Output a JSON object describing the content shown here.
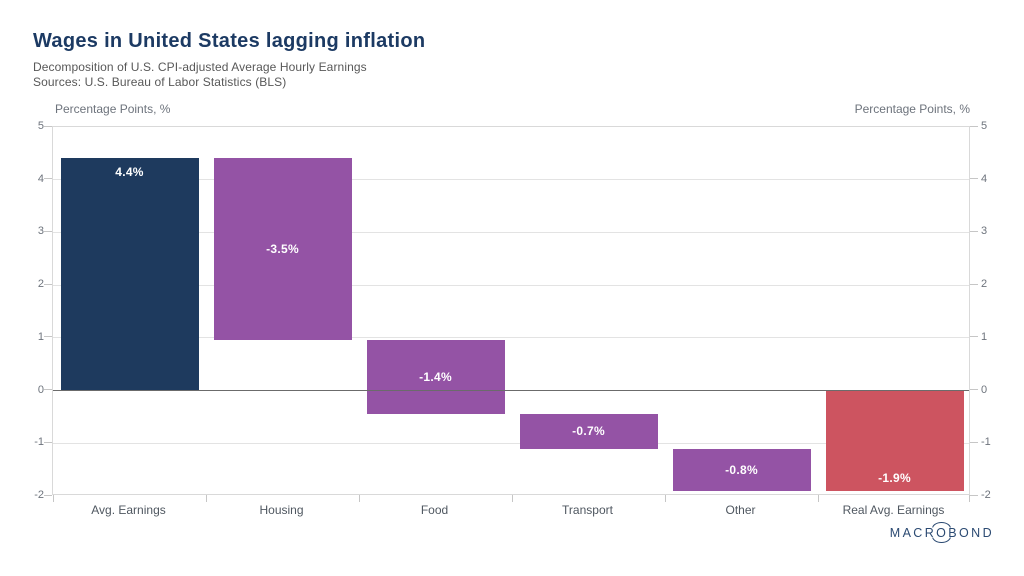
{
  "header": {
    "title": "Wages in United States lagging inflation",
    "subtitle": "Decomposition of U.S. CPI-adjusted Average Hourly Earnings",
    "sources": "Sources: U.S. Bureau of Labor Statistics (BLS)"
  },
  "axes": {
    "left_title": "Percentage Points, %",
    "right_title": "Percentage Points, %",
    "yticks": [
      5,
      4,
      3,
      2,
      1,
      0,
      -1,
      -2
    ]
  },
  "chart_data": {
    "type": "bar",
    "subtype": "waterfall",
    "title": "Wages in United States lagging inflation",
    "subtitle": "Decomposition of U.S. CPI-adjusted Average Hourly Earnings",
    "source": "U.S. Bureau of Labor Statistics (BLS)",
    "ylabel": "Percentage Points, %",
    "ylim": [
      -2,
      5
    ],
    "yticks": [
      5,
      4,
      3,
      2,
      1,
      0,
      -1,
      -2
    ],
    "grid": true,
    "zero_line_on_top": true,
    "legend": false,
    "categories": [
      "Avg. Earnings",
      "Housing",
      "Food",
      "Transport",
      "Other",
      "Real Avg. Earnings"
    ],
    "values": [
      4.4,
      -3.5,
      -1.4,
      -0.7,
      -0.8,
      -1.9
    ],
    "bars": [
      {
        "category": "Avg. Earnings",
        "value": 4.4,
        "label": "4.4%",
        "start": 0,
        "end": 4.42,
        "color": "#1e3a5e",
        "label_position": "top"
      },
      {
        "category": "Housing",
        "value": -3.5,
        "label": "-3.5%",
        "start": 4.42,
        "end": 0.95,
        "color": "#9453a5",
        "label_position": "middle"
      },
      {
        "category": "Food",
        "value": -1.4,
        "label": "-1.4%",
        "start": 0.95,
        "end": -0.45,
        "color": "#9453a5",
        "label_position": "middle"
      },
      {
        "category": "Transport",
        "value": -0.7,
        "label": "-0.7%",
        "start": -0.45,
        "end": -1.1,
        "color": "#9453a5",
        "label_position": "middle"
      },
      {
        "category": "Other",
        "value": -0.8,
        "label": "-0.8%",
        "start": -1.1,
        "end": -1.91,
        "color": "#9453a5",
        "label_position": "middle"
      },
      {
        "category": "Real Avg. Earnings",
        "value": -1.9,
        "label": "-1.9%",
        "start": 0,
        "end": -1.91,
        "color": "#cd5460",
        "label_position": "bottom"
      }
    ],
    "value_label_color": "#ffffff"
  },
  "branding": {
    "logo_part1": "MACR",
    "logo_o": "O",
    "logo_part2": "BOND"
  },
  "colors": {
    "title": "#1c3a63",
    "subtitle": "#585858",
    "axis_text": "#6d737c",
    "category_text": "#4f5760",
    "gridline": "#e3e3e3",
    "zero_line": "#6b6b6b",
    "frame": "#d9d9d9",
    "background": "#ffffff",
    "positive_bar": "#1e3a5e",
    "component_bar": "#9453a5",
    "total_bar": "#cd5460",
    "logo": "#2b4a72"
  }
}
